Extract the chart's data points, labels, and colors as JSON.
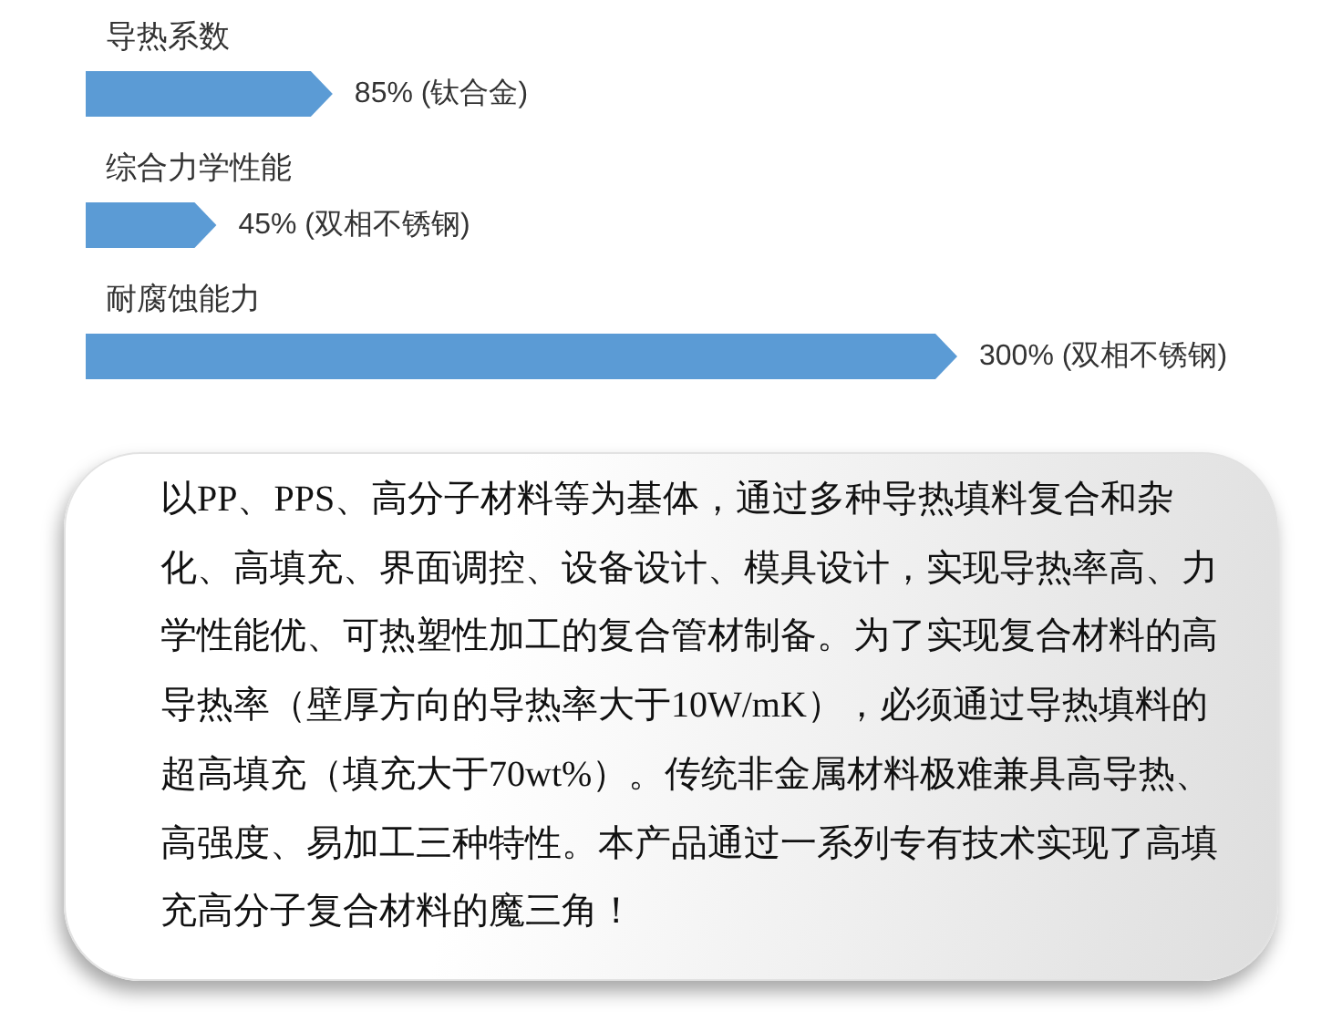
{
  "chart_data": {
    "type": "bar",
    "orientation": "horizontal",
    "categories": [
      "导热系数",
      "综合力学性能",
      "耐腐蚀能力"
    ],
    "values": [
      85,
      45,
      300
    ],
    "color": "#5b9bd5",
    "value_labels": [
      "85% (钛合金)",
      "45% (双相不锈钢)",
      "300% (双相不锈钢)"
    ],
    "tick_labels": "y",
    "annotations": [
      "以PP、PPS、高分子材料等为基体，通过多种导热填料复合和杂化、高填充、界面调控、设备设计、模具设计，实现导热率高、力学性能优、可热塑性加工的复合管材制备。为了实现复合材料的高导热率（壁厚方向的导热率大于10W/mK），必须通过导热填料的超高填充（填充大于70wt%）。传统非金属材料极难兼具高导热、高强度、易加工三种特性。本产品通过一系列专有技术实现了高填充高分子复合材料的魔三角！"
    ]
  }
}
